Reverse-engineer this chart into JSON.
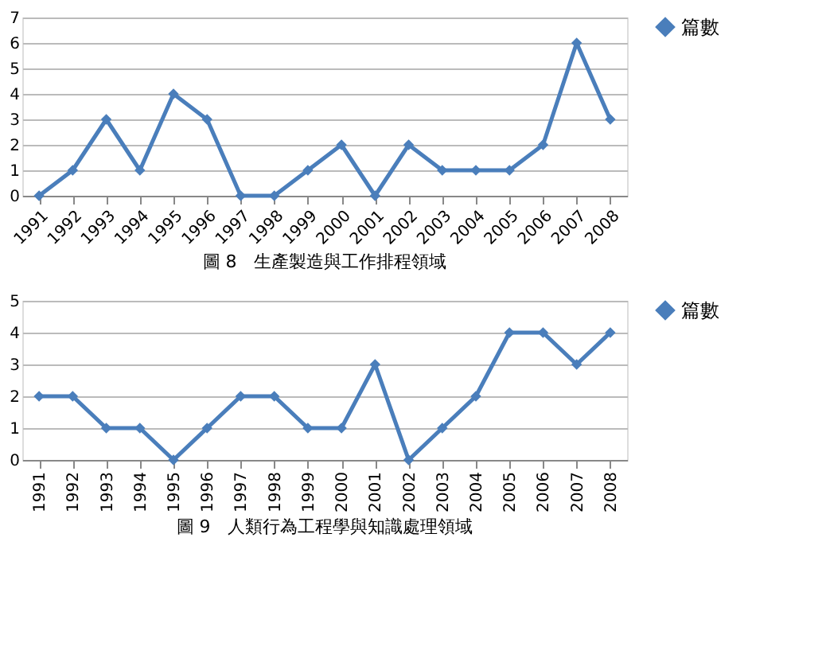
{
  "chart_data": [
    {
      "type": "line",
      "annotations": [
        "圖 8　生產製造與工作排程領域"
      ],
      "categories": [
        "1991",
        "1992",
        "1993",
        "1994",
        "1995",
        "1996",
        "1997",
        "1998",
        "1999",
        "2000",
        "2001",
        "2002",
        "2003",
        "2004",
        "2005",
        "2006",
        "2007",
        "2008"
      ],
      "series": [
        {
          "name": "篇數",
          "color": "#4a7ebb",
          "values": [
            0,
            1,
            3,
            1,
            4,
            3,
            0,
            0,
            1,
            2,
            0,
            2,
            1,
            1,
            1,
            2,
            6,
            3
          ]
        }
      ],
      "ylim": [
        0,
        7
      ],
      "yticks": [
        0,
        1,
        2,
        3,
        4,
        5,
        6,
        7
      ],
      "grid": "y",
      "legend": "right",
      "marker": "diamond",
      "line_style": "solid"
    },
    {
      "type": "line",
      "annotations": [
        "圖 9　人類行為工程學與知識處理領域"
      ],
      "categories": [
        "1991",
        "1992",
        "1993",
        "1994",
        "1995",
        "1996",
        "1997",
        "1998",
        "1999",
        "2000",
        "2001",
        "2002",
        "2003",
        "2004",
        "2005",
        "2006",
        "2007",
        "2008"
      ],
      "series": [
        {
          "name": "篇數",
          "color": "#4a7ebb",
          "values": [
            2,
            2,
            1,
            1,
            0,
            1,
            2,
            2,
            1,
            1,
            3,
            0,
            1,
            2,
            4,
            4,
            3,
            4
          ]
        }
      ],
      "ylim": [
        0,
        5
      ],
      "yticks": [
        0,
        1,
        2,
        3,
        4,
        5
      ],
      "grid": "y",
      "legend": "right",
      "marker": "diamond",
      "line_style": "solid"
    }
  ]
}
